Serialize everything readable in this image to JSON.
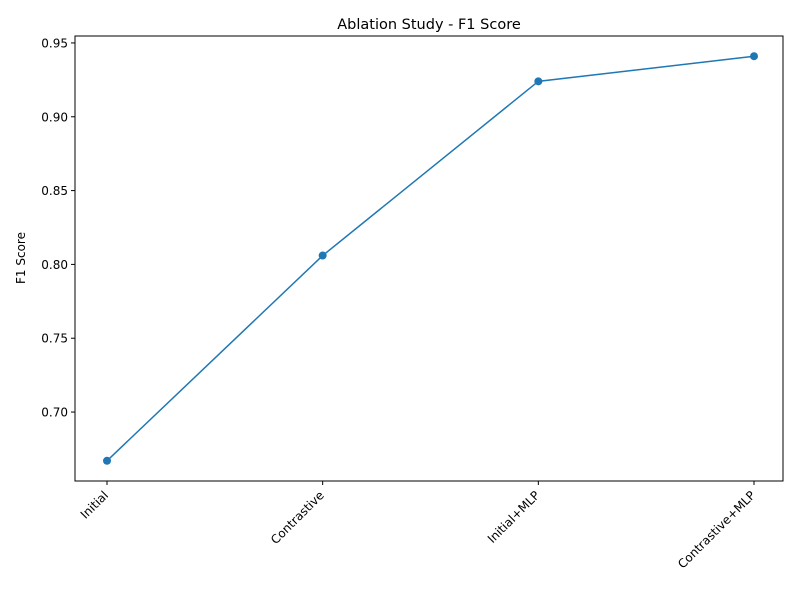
{
  "chart_data": {
    "type": "line",
    "title": "Ablation Study - F1 Score",
    "xlabel": "",
    "ylabel": "F1 Score",
    "categories": [
      "Initial",
      "Contrastive",
      "Initial+MLP",
      "Contrastive+MLP"
    ],
    "series": [
      {
        "values": [
          0.667,
          0.806,
          0.924,
          0.941
        ],
        "color": "#1f77b4",
        "marker": "circle"
      }
    ],
    "yticks": [
      0.7,
      0.75,
      0.8,
      0.85,
      0.9,
      0.95
    ],
    "ytick_labels": [
      "0.70",
      "0.75",
      "0.80",
      "0.85",
      "0.90",
      "0.95"
    ],
    "ylim": [
      0.6533,
      0.9547
    ],
    "grid": false,
    "legend": "none"
  }
}
